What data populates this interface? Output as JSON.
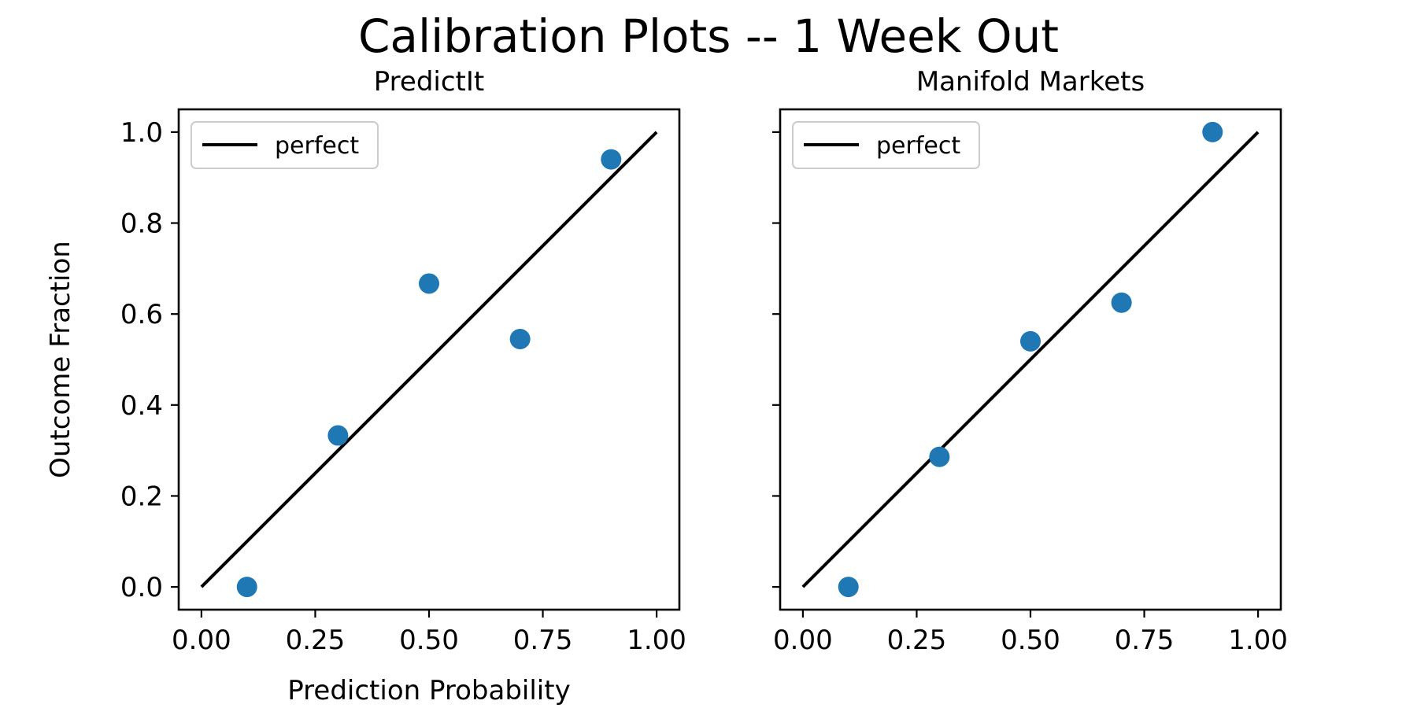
{
  "figure": {
    "title": "Calibration Plots -- 1 Week Out"
  },
  "chart_data": [
    {
      "type": "scatter",
      "title": "PredictIt",
      "xlabel": "Prediction Probability",
      "ylabel": "Outcome Fraction",
      "xlim": [
        -0.05,
        1.05
      ],
      "ylim": [
        -0.05,
        1.05
      ],
      "xticks": [
        "0.00",
        "0.25",
        "0.50",
        "0.75",
        "1.00"
      ],
      "yticks": [
        "0.0",
        "0.2",
        "0.4",
        "0.6",
        "0.8",
        "1.0"
      ],
      "series": [
        {
          "x": [
            0.1,
            0.3,
            0.5,
            0.7,
            0.9
          ],
          "y": [
            0.0,
            0.333,
            0.667,
            0.545,
            0.94
          ],
          "color": "#1f77b4"
        }
      ],
      "reference_line": {
        "name": "perfect",
        "x": [
          0,
          1
        ],
        "y": [
          0,
          1
        ],
        "color": "#000000"
      },
      "legend": {
        "position": "top-left",
        "entries": [
          "perfect"
        ]
      },
      "grid": false
    },
    {
      "type": "scatter",
      "title": "Manifold Markets",
      "xlabel": "",
      "ylabel": "",
      "xlim": [
        -0.05,
        1.05
      ],
      "ylim": [
        -0.05,
        1.05
      ],
      "xticks": [
        "0.00",
        "0.25",
        "0.50",
        "0.75",
        "1.00"
      ],
      "yticks": [],
      "series": [
        {
          "x": [
            0.1,
            0.3,
            0.5,
            0.7,
            0.9
          ],
          "y": [
            0.0,
            0.286,
            0.54,
            0.625,
            1.0
          ],
          "color": "#1f77b4"
        }
      ],
      "reference_line": {
        "name": "perfect",
        "x": [
          0,
          1
        ],
        "y": [
          0,
          1
        ],
        "color": "#000000"
      },
      "legend": {
        "position": "top-left",
        "entries": [
          "perfect"
        ]
      },
      "grid": false
    }
  ]
}
